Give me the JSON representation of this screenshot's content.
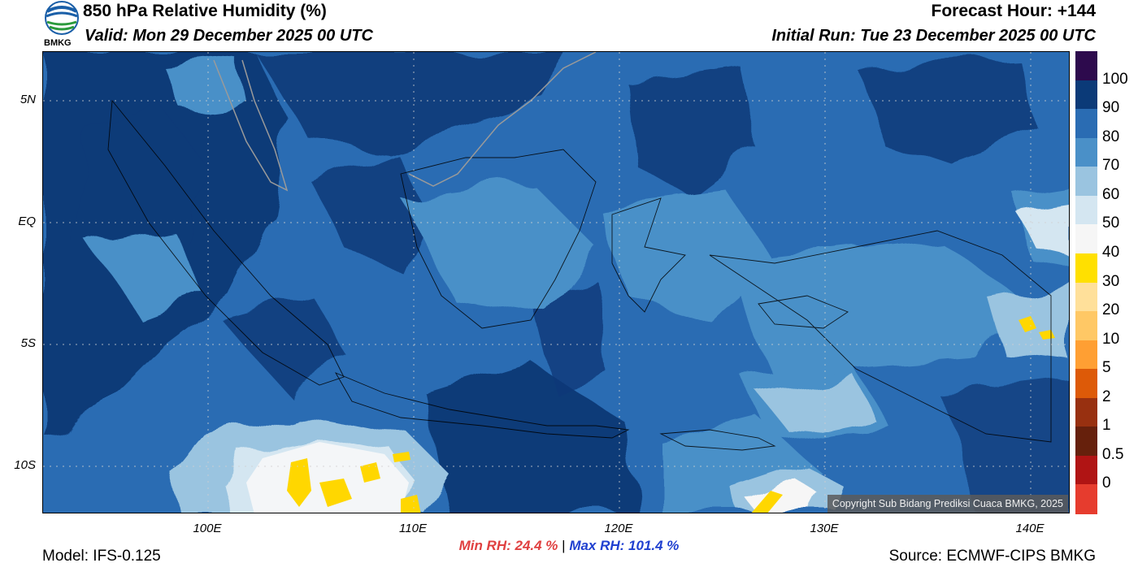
{
  "header": {
    "title": "850 hPa Relative Humidity (%)",
    "valid": "Valid: Mon 29 December 2025 00 UTC",
    "forecast_hour": "Forecast Hour: +144",
    "initial_run": "Initial Run: Tue 23 December 2025 00 UTC",
    "logo_text": "BMKG"
  },
  "map": {
    "lat_labels": [
      "5N",
      "EQ",
      "5S",
      "10S"
    ],
    "lon_labels": [
      "100E",
      "110E",
      "120E",
      "130E",
      "140E"
    ],
    "copyright": "Copyright Sub Bidang Prediksi Cuaca BMKG, 2025",
    "colors": {
      "ocean_moist": "#0b3a78",
      "mid_blue": "#2a6cb3",
      "light_blue": "#4a90c8",
      "pale_blue": "#9ac4e0",
      "dry_white": "#f4f6f8",
      "dry_yellow": "#ffd700",
      "coast_gray": "#9a9a9a"
    }
  },
  "colorbar": {
    "labels": [
      "100",
      "90",
      "80",
      "70",
      "60",
      "50",
      "40",
      "30",
      "20",
      "10",
      "5",
      "2",
      "1",
      "0.5",
      "0"
    ],
    "colors": [
      "#2d0a4d",
      "#0b3a78",
      "#2a6cb3",
      "#4a90c8",
      "#9ac4e0",
      "#d4e6f1",
      "#f6f6f6",
      "#ffe000",
      "#ffe09a",
      "#ffc865",
      "#ff9f33",
      "#dd5a08",
      "#983010",
      "#66200c",
      "#b01414",
      "#e63c2e"
    ]
  },
  "footer": {
    "min_rh": "Min RH:  24.4 %",
    "separator": "|",
    "max_rh": "Max RH: 101.4 %",
    "model": "Model: IFS-0.125",
    "source": "Source: ECMWF-CIPS BMKG"
  }
}
